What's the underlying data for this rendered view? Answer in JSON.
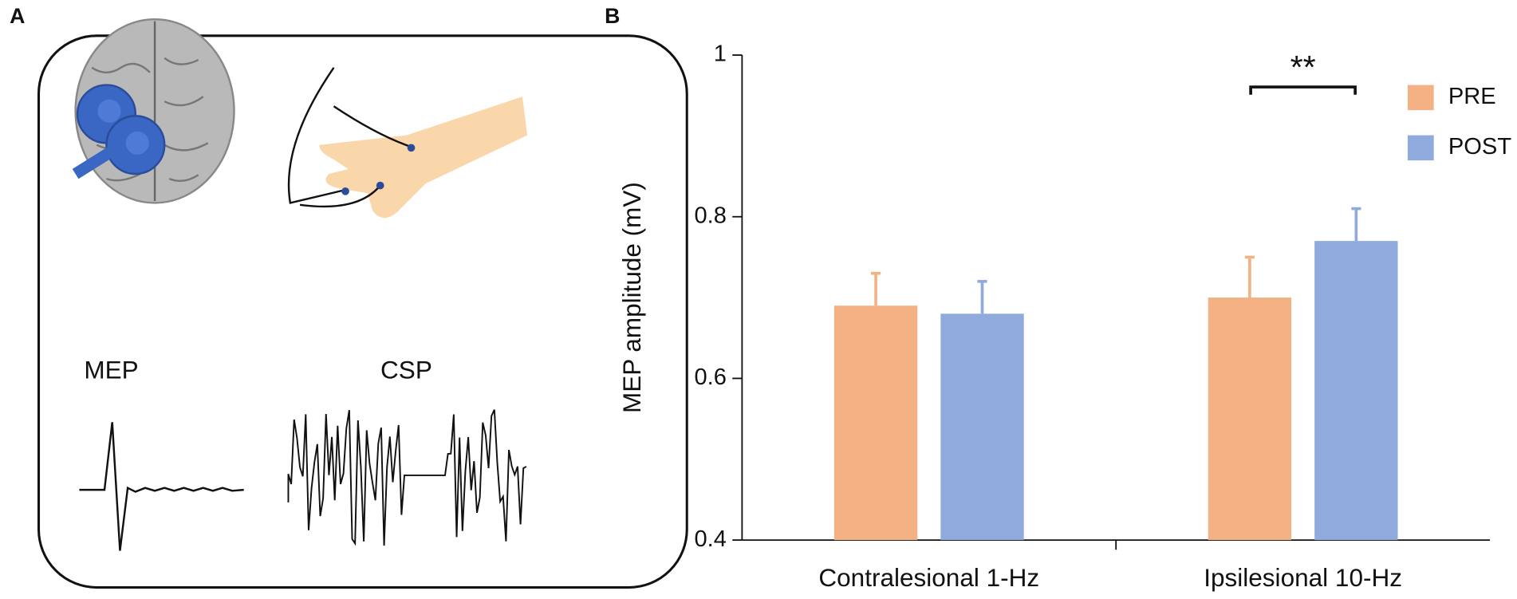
{
  "panel_labels": [
    "A",
    "B"
  ],
  "illustration": {
    "labels": [
      "MEP",
      "CSP"
    ]
  },
  "chart_data": {
    "type": "bar",
    "y_label": "MEP amplitude (mV)",
    "categories": [
      "Contralesional 1-Hz",
      "Ipsilesional 10-Hz"
    ],
    "series": [
      {
        "name": "PRE",
        "color": "#f4b183",
        "values": [
          0.69,
          0.7
        ],
        "errors": [
          0.04,
          0.05
        ]
      },
      {
        "name": "POST",
        "color": "#8faadc",
        "values": [
          0.68,
          0.77
        ],
        "errors": [
          0.04,
          0.04
        ]
      }
    ],
    "ylim": [
      0.4,
      1
    ],
    "yticks": [
      0.4,
      0.6,
      0.8,
      1
    ],
    "annotation": "**",
    "legend": "right"
  }
}
